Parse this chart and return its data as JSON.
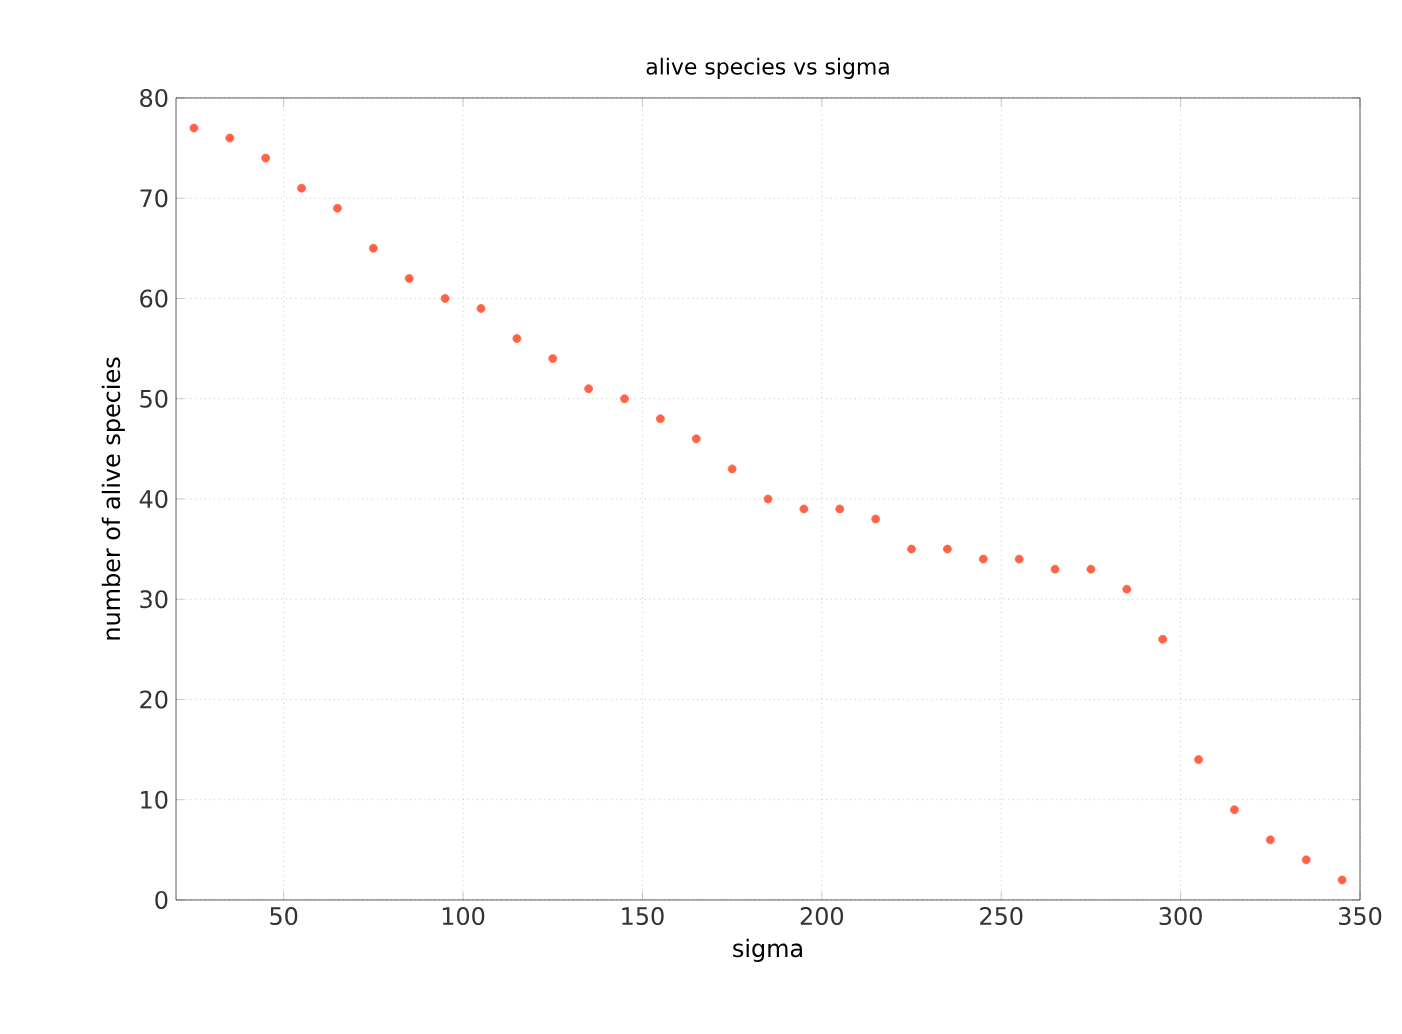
{
  "chart_data": {
    "type": "scatter",
    "title": "alive species vs sigma",
    "xlabel": "sigma",
    "ylabel": "number of alive species",
    "x": [
      25,
      35,
      45,
      55,
      65,
      75,
      85,
      95,
      105,
      115,
      125,
      135,
      145,
      155,
      165,
      175,
      185,
      195,
      205,
      215,
      225,
      235,
      245,
      255,
      265,
      275,
      285,
      295,
      305,
      315,
      325,
      335,
      345
    ],
    "values": [
      77,
      76,
      74,
      71,
      69,
      65,
      62,
      60,
      59,
      56,
      54,
      51,
      50,
      48,
      46,
      43,
      40,
      39,
      39,
      38,
      35,
      35,
      34,
      34,
      33,
      33,
      31,
      26,
      14,
      9,
      6,
      4,
      2
    ],
    "color": "#ff6347",
    "marker": "circle",
    "grid": true,
    "xlim": [
      20,
      350
    ],
    "xticks": [
      50,
      100,
      150,
      200,
      250,
      300,
      350
    ],
    "ylim": [
      0,
      80
    ],
    "yticks": [
      0,
      10,
      20,
      30,
      40,
      50,
      60,
      70,
      80
    ]
  }
}
